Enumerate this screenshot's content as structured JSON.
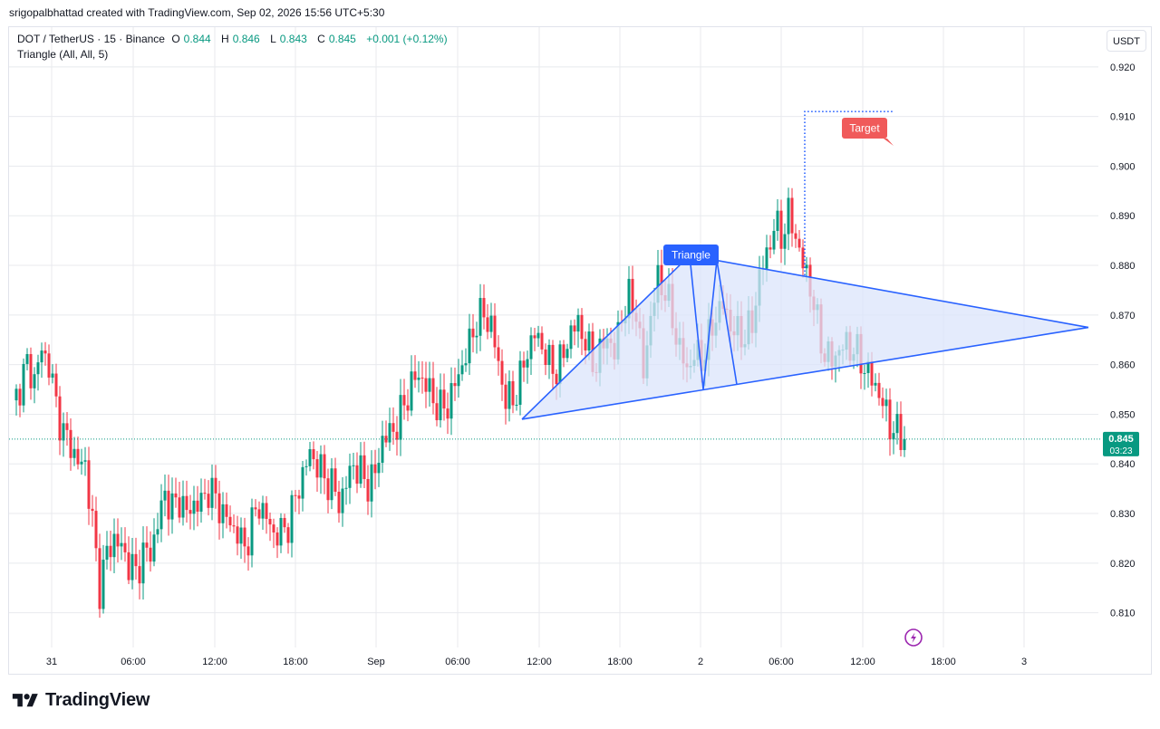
{
  "watermark": "srigopalbhattad created with TradingView.com, Sep 02, 2026 15:56 UTC+5:30",
  "legend": {
    "symbol": "DOT / TetherUS · 15 · Binance",
    "o_label": "O",
    "o": "0.844",
    "h_label": "H",
    "h": "0.846",
    "l_label": "L",
    "l": "0.843",
    "c_label": "C",
    "c": "0.845",
    "change": "+0.001 (+0.12%)",
    "indicator": "Triangle (All, All, 5)"
  },
  "currency_button": "USDT",
  "brand": "TradingView",
  "colors": {
    "up": "#089981",
    "down": "#f23645",
    "pattern": "#2962ff",
    "pattern_fill": "#dbe4fb",
    "target_bg": "#f05a5a",
    "grid": "#e8eaee"
  },
  "chart_data": {
    "type": "candlestick",
    "ylim": [
      0.803,
      0.928
    ],
    "yticks": [
      "0.920",
      "0.910",
      "0.900",
      "0.890",
      "0.880",
      "0.870",
      "0.860",
      "0.850",
      "0.840",
      "0.830",
      "0.820",
      "0.810"
    ],
    "xticks": [
      "31",
      "06:00",
      "12:00",
      "18:00",
      "Sep",
      "06:00",
      "12:00",
      "18:00",
      "2",
      "06:00",
      "12:00",
      "18:00",
      "3"
    ],
    "last_price": "0.845",
    "countdown": "03:23",
    "pattern_label": "Triangle",
    "target_label": "Target",
    "target_price": 0.911,
    "triangle": {
      "start": 0.849,
      "apex": 0.882,
      "lower_left": 0.855,
      "upper_right": 0.881,
      "lower_right": 0.856,
      "end": 0.8675
    },
    "close_path": [
      [
        0,
        0.851
      ],
      [
        2,
        0.856
      ],
      [
        4,
        0.86
      ],
      [
        6,
        0.857
      ],
      [
        8,
        0.863
      ],
      [
        10,
        0.86
      ],
      [
        12,
        0.852
      ],
      [
        14,
        0.846
      ],
      [
        16,
        0.844
      ],
      [
        18,
        0.84
      ],
      [
        20,
        0.84
      ],
      [
        22,
        0.828
      ],
      [
        24,
        0.815
      ],
      [
        26,
        0.822
      ],
      [
        28,
        0.825
      ],
      [
        30,
        0.823
      ],
      [
        32,
        0.82
      ],
      [
        34,
        0.818
      ],
      [
        36,
        0.822
      ],
      [
        38,
        0.822
      ],
      [
        40,
        0.828
      ],
      [
        42,
        0.834
      ],
      [
        44,
        0.831
      ],
      [
        46,
        0.833
      ],
      [
        48,
        0.83
      ],
      [
        50,
        0.832
      ],
      [
        52,
        0.832
      ],
      [
        54,
        0.835
      ],
      [
        56,
        0.833
      ],
      [
        58,
        0.83
      ],
      [
        60,
        0.828
      ],
      [
        62,
        0.826
      ],
      [
        64,
        0.823
      ],
      [
        66,
        0.828
      ],
      [
        68,
        0.832
      ],
      [
        70,
        0.829
      ],
      [
        72,
        0.826
      ],
      [
        74,
        0.826
      ],
      [
        76,
        0.828
      ],
      [
        78,
        0.833
      ],
      [
        80,
        0.838
      ],
      [
        82,
        0.842
      ],
      [
        84,
        0.84
      ],
      [
        86,
        0.837
      ],
      [
        88,
        0.836
      ],
      [
        90,
        0.832
      ],
      [
        92,
        0.836
      ],
      [
        94,
        0.84
      ],
      [
        96,
        0.838
      ],
      [
        98,
        0.836
      ],
      [
        100,
        0.838
      ],
      [
        102,
        0.845
      ],
      [
        104,
        0.846
      ],
      [
        106,
        0.848
      ],
      [
        108,
        0.852
      ],
      [
        110,
        0.856
      ],
      [
        112,
        0.858
      ],
      [
        114,
        0.856
      ],
      [
        116,
        0.853
      ],
      [
        118,
        0.851
      ],
      [
        120,
        0.852
      ],
      [
        122,
        0.856
      ],
      [
        124,
        0.86
      ],
      [
        126,
        0.864
      ],
      [
        128,
        0.869
      ],
      [
        130,
        0.87
      ],
      [
        132,
        0.868
      ],
      [
        134,
        0.86
      ],
      [
        136,
        0.853
      ],
      [
        138,
        0.853
      ],
      [
        140,
        0.857
      ],
      [
        142,
        0.863
      ],
      [
        144,
        0.866
      ],
      [
        146,
        0.864
      ],
      [
        148,
        0.86
      ],
      [
        150,
        0.859
      ],
      [
        152,
        0.862
      ],
      [
        154,
        0.867
      ],
      [
        156,
        0.868
      ],
      [
        158,
        0.865
      ],
      [
        160,
        0.86
      ],
      [
        162,
        0.862
      ],
      [
        164,
        0.866
      ],
      [
        166,
        0.862
      ],
      [
        168,
        0.87
      ],
      [
        170,
        0.873
      ],
      [
        172,
        0.871
      ],
      [
        174,
        0.858
      ],
      [
        176,
        0.87
      ],
      [
        178,
        0.877
      ],
      [
        180,
        0.875
      ],
      [
        182,
        0.869
      ],
      [
        184,
        0.863
      ],
      [
        186,
        0.859
      ],
      [
        188,
        0.862
      ],
      [
        190,
        0.861
      ],
      [
        192,
        0.865
      ],
      [
        194,
        0.87
      ],
      [
        196,
        0.872
      ],
      [
        198,
        0.868
      ],
      [
        200,
        0.866
      ],
      [
        202,
        0.866
      ],
      [
        204,
        0.868
      ],
      [
        206,
        0.878
      ],
      [
        208,
        0.882
      ],
      [
        210,
        0.888
      ],
      [
        212,
        0.886
      ],
      [
        214,
        0.89
      ],
      [
        216,
        0.886
      ],
      [
        218,
        0.88
      ],
      [
        220,
        0.876
      ],
      [
        222,
        0.868
      ],
      [
        224,
        0.862
      ],
      [
        226,
        0.861
      ],
      [
        228,
        0.863
      ],
      [
        230,
        0.864
      ],
      [
        232,
        0.863
      ],
      [
        234,
        0.861
      ],
      [
        236,
        0.858
      ],
      [
        238,
        0.856
      ],
      [
        240,
        0.852
      ],
      [
        242,
        0.848
      ],
      [
        244,
        0.846
      ],
      [
        246,
        0.845
      ]
    ]
  }
}
